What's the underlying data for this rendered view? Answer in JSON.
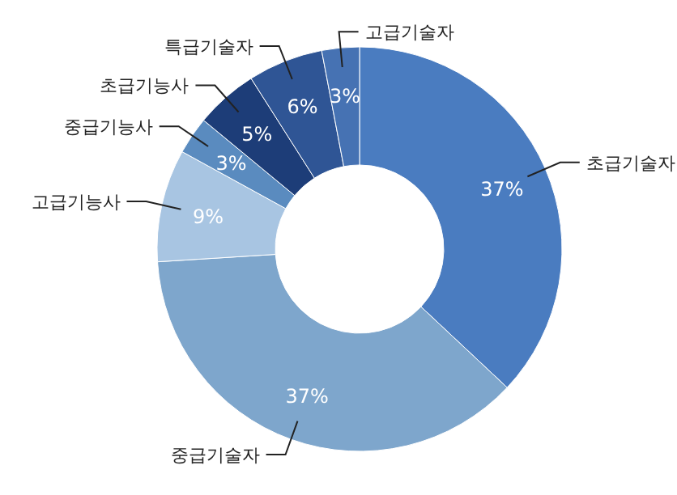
{
  "chart_data": {
    "type": "donut",
    "categories": [
      "초급기술자",
      "중급기술자",
      "고급기능사",
      "중급기능사",
      "초급기능사",
      "특급기술자",
      "고급기술자"
    ],
    "values": [
      37,
      37,
      9,
      3,
      5,
      6,
      3
    ],
    "value_labels": [
      "37%",
      "37%",
      "9%",
      "3%",
      "5%",
      "6%",
      "3%"
    ],
    "colors": [
      "#4a7cc0",
      "#7ea6cc",
      "#a8c5e2",
      "#5a8bbf",
      "#1d3d78",
      "#2f5595",
      "#4672b3"
    ]
  }
}
